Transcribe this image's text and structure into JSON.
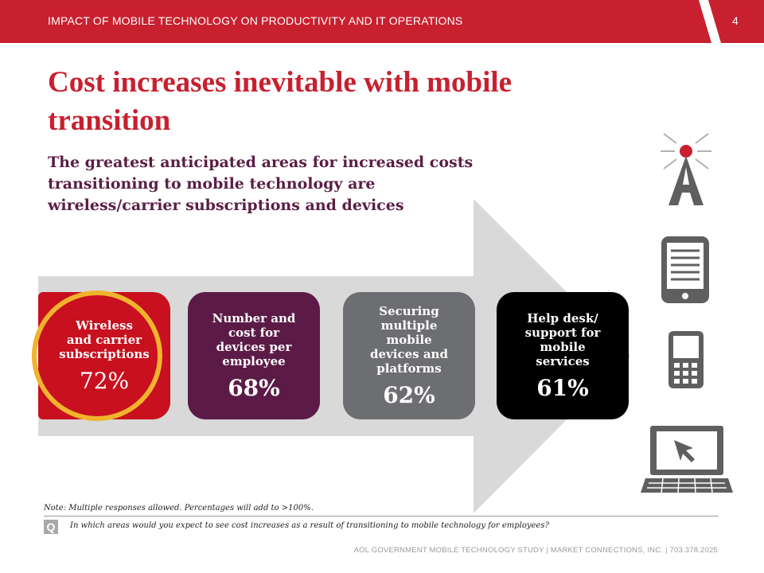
{
  "header": {
    "section_title": "IMPACT OF MOBILE TECHNOLOGY ON PRODUCTIVITY AND IT OPERATIONS",
    "page_number": "4"
  },
  "slide": {
    "title": "Cost increases inevitable with mobile transition",
    "subtitle": "The greatest anticipated areas for increased costs transitioning to mobile technology are wireless/carrier subscriptions and devices"
  },
  "chart_data": {
    "type": "bar",
    "categories": [
      "Wireless and carrier subscriptions",
      "Number and cost for devices per employee",
      "Securing multiple mobile devices and platforms",
      "Help desk/ support for mobile services"
    ],
    "card_labels": [
      "Wireless\nand carrier\nsubscriptions",
      "Number and\ncost for\ndevices per\nemployee",
      "Securing\nmultiple\nmobile\ndevices and\nplatforms",
      "Help desk/\nsupport for\nmobile\nservices"
    ],
    "values": [
      72,
      68,
      62,
      61
    ],
    "value_labels": [
      "72%",
      "68%",
      "62%",
      "61%"
    ],
    "colors": [
      "#c8101e",
      "#5c1b47",
      "#6d6e71",
      "#000000"
    ],
    "highlight_index": 0,
    "highlight_color": "#f0b32d"
  },
  "icons": [
    "antenna-tower-icon",
    "tablet-icon",
    "mobile-phone-icon",
    "laptop-icon"
  ],
  "footnotes": {
    "note": "Note: Multiple responses allowed.  Percentages will add to >100%.",
    "q_badge": "Q",
    "question": "In which areas would you expect to see cost increases as a result of transitioning to mobile technology for employees?",
    "footer": "AOL GOVERNMENT MOBILE TECHNOLOGY STUDY  |  MARKET CONNECTIONS, INC.  |  703.378.2025"
  },
  "colors": {
    "brand_red": "#c8202f",
    "subtitle_purple": "#5a1e44",
    "arrow_gray": "#d9d9d9",
    "icon_gray": "#5f5f5f"
  }
}
